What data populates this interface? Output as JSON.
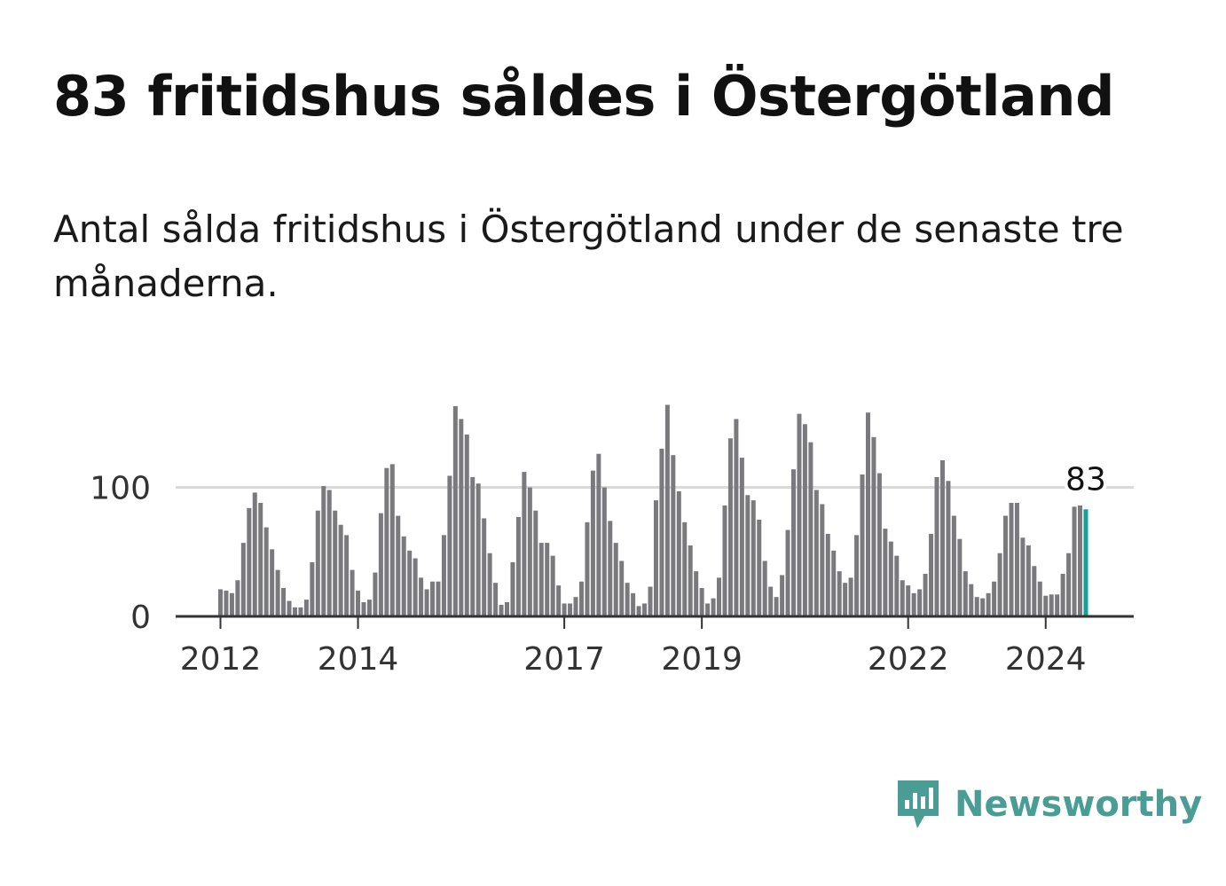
{
  "title": "83 fritidshus såldes i Östergötland",
  "subtitle": "Antal sålda fritidshus i Östergötland under de senaste tre månaderna.",
  "brand": {
    "name": "Newsworthy",
    "icon": "newsworthy-logo-icon"
  },
  "colors": {
    "bar": "#7a797e",
    "highlight": "#15a19a",
    "grid": "#d9d9d9",
    "axis": "#333333",
    "brand": "#4a9d95"
  },
  "chart_data": {
    "type": "bar",
    "start": "2012-01",
    "values": [
      21,
      20,
      18,
      28,
      57,
      84,
      96,
      88,
      69,
      52,
      36,
      22,
      12,
      7,
      7,
      13,
      42,
      82,
      101,
      98,
      82,
      71,
      63,
      36,
      20,
      11,
      13,
      34,
      80,
      115,
      118,
      78,
      62,
      51,
      45,
      30,
      21,
      27,
      27,
      63,
      109,
      163,
      153,
      141,
      108,
      103,
      76,
      49,
      26,
      9,
      11,
      42,
      77,
      112,
      100,
      82,
      57,
      57,
      47,
      24,
      10,
      10,
      15,
      27,
      73,
      113,
      126,
      100,
      74,
      57,
      43,
      26,
      18,
      8,
      10,
      23,
      90,
      130,
      164,
      125,
      97,
      73,
      55,
      35,
      22,
      10,
      14,
      30,
      86,
      138,
      153,
      123,
      94,
      90,
      75,
      43,
      23,
      15,
      32,
      67,
      114,
      157,
      149,
      135,
      98,
      87,
      64,
      51,
      35,
      26,
      30,
      63,
      110,
      158,
      139,
      111,
      68,
      58,
      47,
      28,
      24,
      18,
      21,
      33,
      64,
      108,
      121,
      105,
      78,
      60,
      35,
      25,
      15,
      14,
      18,
      27,
      49,
      78,
      88,
      88,
      61,
      55,
      39,
      27,
      16,
      17,
      17,
      33,
      49,
      85,
      86,
      83
    ],
    "last_label": "83",
    "ylim": [
      0,
      165
    ],
    "yticks": [
      0,
      100
    ],
    "xticks": [
      "2012",
      "2014",
      "2017",
      "2019",
      "2022",
      "2024"
    ],
    "grid": true
  }
}
